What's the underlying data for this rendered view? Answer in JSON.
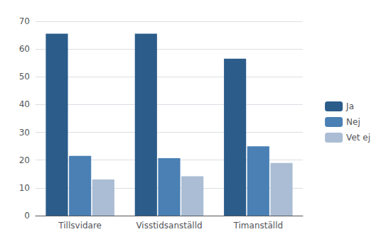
{
  "chart_data": {
    "type": "bar",
    "categories": [
      "Tillsvidare",
      "Visstidsanställd",
      "Timanställd"
    ],
    "series": [
      {
        "name": "Ja",
        "color": "#2B5C8A",
        "values": [
          65.5,
          65.5,
          56.5
        ]
      },
      {
        "name": "Nej",
        "color": "#4A80B4",
        "values": [
          21.5,
          20.7,
          25.0
        ]
      },
      {
        "name": "Vet ej",
        "color": "#AABDD4",
        "values": [
          13.0,
          14.2,
          19.0
        ]
      }
    ],
    "ylim": [
      0,
      70
    ],
    "yticks": [
      0,
      10,
      20,
      30,
      40,
      50,
      60,
      70
    ],
    "grid": true,
    "legend": "right"
  }
}
